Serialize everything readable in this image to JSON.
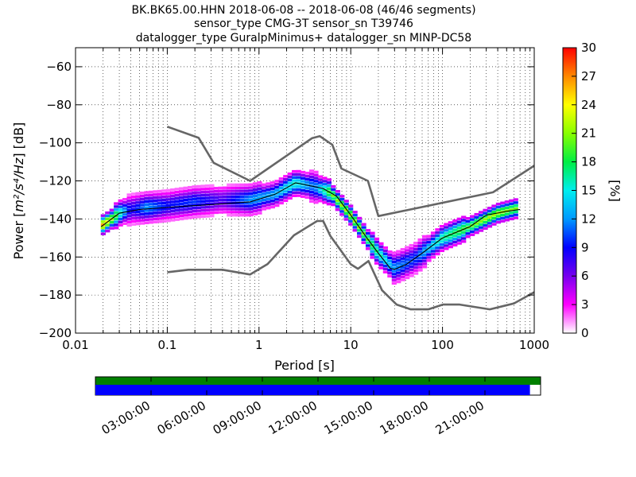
{
  "title_lines": [
    "BK.BK65.00.HHN   2018-06-08 -- 2018-06-08  (46/46 segments)",
    "sensor_type CMG-3T sensor_sn T39746",
    "datalogger_type GuralpMinimus+ datalogger_sn MINP-DC58"
  ],
  "chart_data": {
    "type": "heatmap",
    "xlabel": "Period [s]",
    "ylabel": "Power [m²/s⁴/Hz] [dB]",
    "ylabel_pre": "Power [",
    "ylabel_unit": "m²/s⁴/Hz",
    "ylabel_post": "] [dB]",
    "x_scale": "log",
    "xlim": [
      0.01,
      1000
    ],
    "ylim": [
      -200,
      -50
    ],
    "x_ticks": [
      {
        "value": 0.01,
        "label": "0.01"
      },
      {
        "value": 0.1,
        "label": "0.1"
      },
      {
        "value": 1,
        "label": "1"
      },
      {
        "value": 10,
        "label": "10"
      },
      {
        "value": 100,
        "label": "100"
      },
      {
        "value": 1000,
        "label": "1000"
      }
    ],
    "y_ticks": [
      {
        "value": -60,
        "label": "−60"
      },
      {
        "value": -80,
        "label": "−80"
      },
      {
        "value": -100,
        "label": "−100"
      },
      {
        "value": -120,
        "label": "−120"
      },
      {
        "value": -140,
        "label": "−140"
      },
      {
        "value": -160,
        "label": "−160"
      },
      {
        "value": -180,
        "label": "−180"
      },
      {
        "value": -200,
        "label": "−200"
      }
    ],
    "grid": true,
    "colorbar": {
      "label": "[%]",
      "range": [
        0,
        30
      ],
      "ticks": [
        {
          "value": 0,
          "label": "0"
        },
        {
          "value": 3,
          "label": "3"
        },
        {
          "value": 6,
          "label": "6"
        },
        {
          "value": 9,
          "label": "9"
        },
        {
          "value": 12,
          "label": "12"
        },
        {
          "value": 15,
          "label": "15"
        },
        {
          "value": 18,
          "label": "18"
        },
        {
          "value": 21,
          "label": "21"
        },
        {
          "value": 24,
          "label": "24"
        },
        {
          "value": 27,
          "label": "27"
        },
        {
          "value": 30,
          "label": "30"
        }
      ],
      "colors": [
        "#ffffff",
        "#ff00ff",
        "#7700ee",
        "#0000ff",
        "#0099ff",
        "#00eeee",
        "#00ee44",
        "#88ff00",
        "#ffff00",
        "#ff8800",
        "#ff0000"
      ]
    },
    "noise_models": [
      {
        "name": "high",
        "points": [
          [
            0.1,
            -91.5
          ],
          [
            0.22,
            -97.4
          ],
          [
            0.32,
            -110.5
          ],
          [
            0.8,
            -120
          ],
          [
            3.8,
            -97.5
          ],
          [
            4.6,
            -96.5
          ],
          [
            6.3,
            -101
          ],
          [
            7.9,
            -113.5
          ],
          [
            15.4,
            -120
          ],
          [
            20,
            -138.5
          ],
          [
            354.8,
            -126
          ],
          [
            1000,
            -112
          ]
        ]
      },
      {
        "name": "low",
        "points": [
          [
            0.1,
            -168
          ],
          [
            0.17,
            -166.7
          ],
          [
            0.4,
            -166.7
          ],
          [
            0.8,
            -169.2
          ],
          [
            1.24,
            -163.7
          ],
          [
            2.4,
            -148.6
          ],
          [
            4.3,
            -141.1
          ],
          [
            5,
            -141.1
          ],
          [
            6,
            -149
          ],
          [
            10,
            -163.8
          ],
          [
            12,
            -166.2
          ],
          [
            15.6,
            -162.1
          ],
          [
            21.9,
            -177.5
          ],
          [
            31.6,
            -185
          ],
          [
            45,
            -187.5
          ],
          [
            70,
            -187.5
          ],
          [
            101,
            -185
          ],
          [
            154,
            -185
          ],
          [
            328,
            -187.5
          ],
          [
            600,
            -184.4
          ],
          [
            1000,
            -178.5
          ]
        ]
      }
    ],
    "mean_curve": {
      "points": [
        [
          0.019,
          -144
        ],
        [
          0.03,
          -137
        ],
        [
          0.05,
          -135
        ],
        [
          0.1,
          -134
        ],
        [
          0.2,
          -133
        ],
        [
          0.4,
          -132
        ],
        [
          0.8,
          -131
        ],
        [
          1.5,
          -127
        ],
        [
          2.5,
          -121
        ],
        [
          4,
          -123
        ],
        [
          5,
          -124
        ],
        [
          7,
          -128
        ],
        [
          10,
          -138
        ],
        [
          15,
          -150
        ],
        [
          20,
          -158
        ],
        [
          27,
          -166
        ],
        [
          30,
          -166.5
        ],
        [
          40,
          -164
        ],
        [
          60,
          -158
        ],
        [
          100,
          -150
        ],
        [
          200,
          -144
        ],
        [
          300,
          -138
        ],
        [
          500,
          -136
        ],
        [
          700,
          -135
        ]
      ]
    },
    "psd_density": [
      {
        "x": 0.02,
        "y": -143,
        "pct": 26
      },
      {
        "x": 0.025,
        "y": -140,
        "pct": 22
      },
      {
        "x": 0.03,
        "y": -137,
        "pct": 17
      },
      {
        "x": 0.04,
        "y": -135,
        "pct": 8
      },
      {
        "x": 0.06,
        "y": -134,
        "pct": 12
      },
      {
        "x": 0.1,
        "y": -133,
        "pct": 9
      },
      {
        "x": 0.2,
        "y": -131,
        "pct": 10
      },
      {
        "x": 0.4,
        "y": -130,
        "pct": 7
      },
      {
        "x": 0.8,
        "y": -130,
        "pct": 12
      },
      {
        "x": 1.5,
        "y": -127,
        "pct": 13
      },
      {
        "x": 2.5,
        "y": -121,
        "pct": 16
      },
      {
        "x": 4,
        "y": -123,
        "pct": 11
      },
      {
        "x": 6,
        "y": -126,
        "pct": 20
      },
      {
        "x": 10,
        "y": -138,
        "pct": 22
      },
      {
        "x": 15,
        "y": -150,
        "pct": 20
      },
      {
        "x": 20,
        "y": -158,
        "pct": 17
      },
      {
        "x": 30,
        "y": -166,
        "pct": 12
      },
      {
        "x": 50,
        "y": -161,
        "pct": 10
      },
      {
        "x": 100,
        "y": -150,
        "pct": 17
      },
      {
        "x": 200,
        "y": -144,
        "pct": 20
      },
      {
        "x": 400,
        "y": -137,
        "pct": 22
      },
      {
        "x": 700,
        "y": -134,
        "pct": 20
      }
    ]
  },
  "timeline": {
    "date_labels": [
      "03:00:00",
      "06:00:00",
      "09:00:00",
      "12:00:00",
      "15:00:00",
      "18:00:00",
      "21:00:00"
    ],
    "hours": [
      3,
      6,
      9,
      12,
      15,
      18,
      21
    ],
    "span_hours": 24,
    "data_coverage": 1.0,
    "psd_coverage": 0.976,
    "data_color": "#008000",
    "psd_color": "#0000ff"
  }
}
